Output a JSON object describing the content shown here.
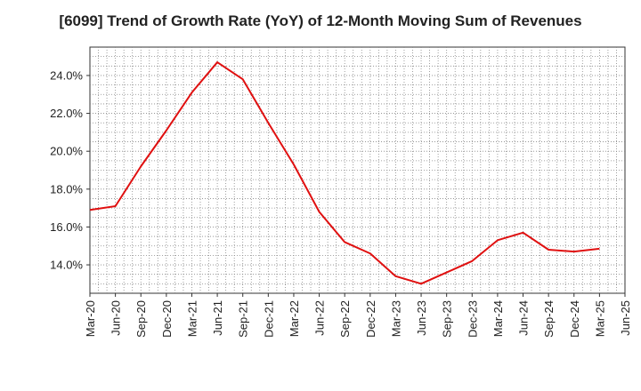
{
  "chart_data": {
    "type": "line",
    "title": "[6099]  Trend of Growth Rate (YoY) of 12-Month Moving Sum of Revenues",
    "xlabel": "",
    "ylabel": "",
    "x_ticks": [
      "Mar-20",
      "Jun-20",
      "Sep-20",
      "Dec-20",
      "Mar-21",
      "Jun-21",
      "Sep-21",
      "Dec-21",
      "Mar-22",
      "Jun-22",
      "Sep-22",
      "Dec-22",
      "Mar-23",
      "Jun-23",
      "Sep-23",
      "Dec-23",
      "Mar-24",
      "Jun-24",
      "Sep-24",
      "Dec-24",
      "Mar-25",
      "Jun-25"
    ],
    "y_ticks": [
      "14.0%",
      "16.0%",
      "18.0%",
      "20.0%",
      "22.0%",
      "24.0%"
    ],
    "y_tick_values": [
      14,
      16,
      18,
      20,
      22,
      24
    ],
    "ylim": [
      12.5,
      25.5
    ],
    "grid": true,
    "series": [
      {
        "color": "#e01010",
        "x": [
          "Mar-20",
          "Jun-20",
          "Sep-20",
          "Dec-20",
          "Mar-21",
          "Jun-21",
          "Sep-21",
          "Dec-21",
          "Mar-22",
          "Jun-22",
          "Sep-22",
          "Dec-22",
          "Mar-23",
          "Jun-23",
          "Sep-23",
          "Dec-23",
          "Mar-24",
          "Jun-24",
          "Sep-24",
          "Dec-24",
          "Mar-25"
        ],
        "values": [
          16.9,
          17.1,
          19.2,
          21.1,
          23.1,
          24.7,
          23.8,
          21.5,
          19.3,
          16.8,
          15.2,
          14.6,
          13.4,
          13.0,
          13.6,
          14.2,
          15.3,
          15.7,
          14.8,
          14.7,
          14.85
        ]
      }
    ]
  }
}
